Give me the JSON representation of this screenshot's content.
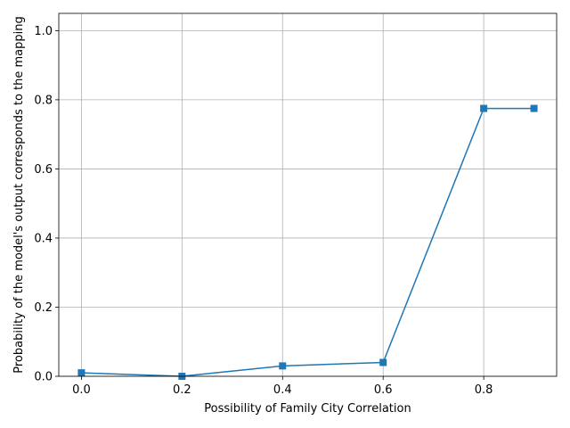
{
  "chart_data": {
    "type": "line",
    "title": "",
    "xlabel": "Possibility of Family City Correlation",
    "ylabel": "Probability of the model's output corresponds to the mapping",
    "xlim": [
      -0.045,
      0.945
    ],
    "ylim": [
      0,
      1.05
    ],
    "xticks": [
      0.0,
      0.2,
      0.4,
      0.6,
      0.8
    ],
    "xtick_labels": [
      "0.0",
      "0.2",
      "0.4",
      "0.6",
      "0.8"
    ],
    "yticks": [
      0.0,
      0.2,
      0.4,
      0.6,
      0.8,
      1.0
    ],
    "ytick_labels": [
      "0.0",
      "0.2",
      "0.4",
      "0.6",
      "0.8",
      "1.0"
    ],
    "grid": true,
    "legend": "none",
    "series": [
      {
        "color": "#1f77b4",
        "marker": "square",
        "x": [
          0.0,
          0.2,
          0.4,
          0.6,
          0.8,
          0.9
        ],
        "y": [
          0.01,
          0.0,
          0.03,
          0.04,
          0.775,
          0.775
        ]
      }
    ]
  }
}
